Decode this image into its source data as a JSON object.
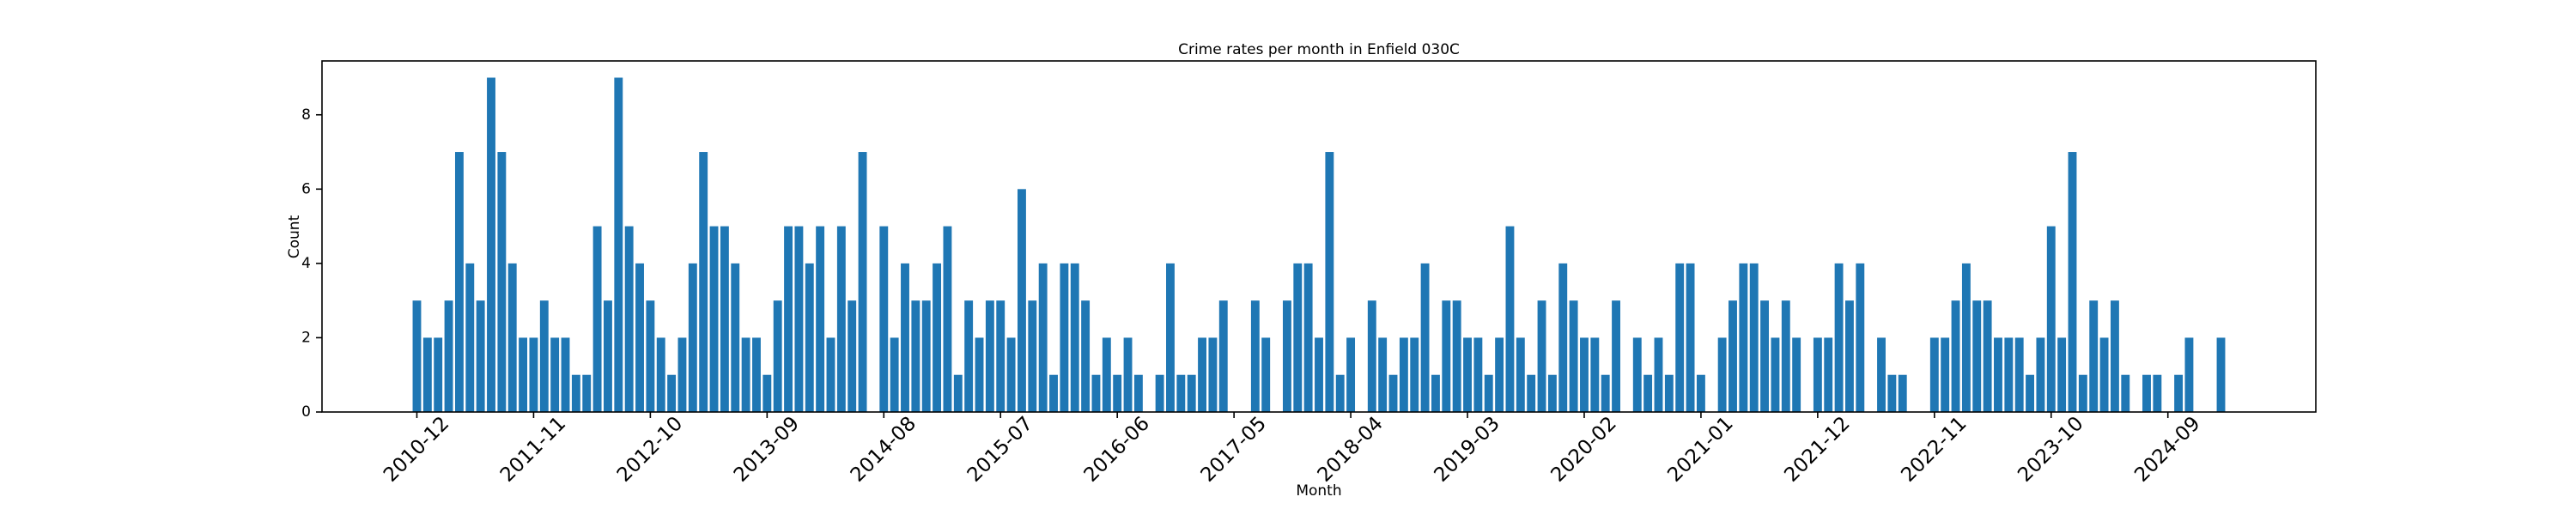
{
  "chart_data": {
    "type": "bar",
    "title": "Crime rates per month in Enfield 030C",
    "x_label": "Month",
    "y_label": "Count",
    "color": "#1f77b4",
    "grid": false,
    "ylim": [
      0,
      9.45
    ],
    "yticks": [
      0,
      2,
      4,
      6,
      8
    ],
    "categories": [
      "2010-12",
      null,
      null,
      null,
      null,
      null,
      null,
      null,
      null,
      null,
      null,
      "2011-11",
      null,
      null,
      null,
      null,
      null,
      null,
      null,
      null,
      null,
      null,
      "2012-10",
      null,
      null,
      null,
      null,
      null,
      null,
      null,
      null,
      null,
      null,
      "2013-09",
      null,
      null,
      null,
      null,
      null,
      null,
      null,
      null,
      null,
      null,
      "2014-08",
      null,
      null,
      null,
      null,
      null,
      null,
      null,
      null,
      null,
      null,
      "2015-07",
      null,
      null,
      null,
      null,
      null,
      null,
      null,
      null,
      null,
      null,
      "2016-06",
      null,
      null,
      null,
      null,
      null,
      null,
      null,
      null,
      null,
      null,
      "2017-05",
      null,
      null,
      null,
      null,
      null,
      null,
      null,
      null,
      null,
      null,
      "2018-04",
      null,
      null,
      null,
      null,
      null,
      null,
      null,
      null,
      null,
      null,
      "2019-03",
      null,
      null,
      null,
      null,
      null,
      null,
      null,
      null,
      null,
      null,
      "2020-02",
      null,
      null,
      null,
      null,
      null,
      null,
      null,
      null,
      null,
      null,
      "2021-01",
      null,
      null,
      null,
      null,
      null,
      null,
      null,
      null,
      null,
      null,
      "2021-12",
      null,
      null,
      null,
      null,
      null,
      null,
      null,
      null,
      null,
      null,
      "2022-11",
      null,
      null,
      null,
      null,
      null,
      null,
      null,
      null,
      null,
      null,
      "2023-10",
      null,
      null,
      null,
      null,
      null,
      null,
      null,
      null,
      null,
      null,
      "2024-09",
      null,
      null,
      null,
      null,
      null
    ],
    "values": [
      3,
      2,
      2,
      3,
      7,
      4,
      3,
      9,
      7,
      4,
      2,
      2,
      3,
      2,
      2,
      1,
      1,
      5,
      3,
      9,
      5,
      4,
      3,
      2,
      1,
      2,
      4,
      7,
      5,
      5,
      4,
      2,
      2,
      1,
      3,
      5,
      5,
      4,
      5,
      2,
      5,
      3,
      7,
      0,
      5,
      2,
      4,
      3,
      3,
      4,
      5,
      1,
      3,
      2,
      3,
      3,
      2,
      6,
      3,
      4,
      1,
      4,
      4,
      3,
      1,
      2,
      1,
      2,
      1,
      0,
      1,
      4,
      1,
      1,
      2,
      2,
      3,
      0,
      0,
      3,
      2,
      0,
      3,
      4,
      4,
      2,
      7,
      1,
      2,
      0,
      3,
      2,
      1,
      2,
      2,
      4,
      1,
      3,
      3,
      2,
      2,
      1,
      2,
      5,
      2,
      1,
      3,
      1,
      4,
      3,
      2,
      2,
      1,
      3,
      0,
      2,
      1,
      2,
      1,
      4,
      4,
      1,
      0,
      2,
      3,
      4,
      4,
      3,
      2,
      3,
      2,
      0,
      2,
      2,
      4,
      3,
      4,
      0,
      2,
      1,
      1,
      0,
      0,
      2,
      2,
      3,
      4,
      3,
      3,
      2,
      2,
      2,
      1,
      2,
      5,
      2,
      7,
      1,
      3,
      2,
      3,
      1,
      0,
      1,
      1,
      0,
      1,
      2,
      0,
      0,
      2
    ]
  }
}
